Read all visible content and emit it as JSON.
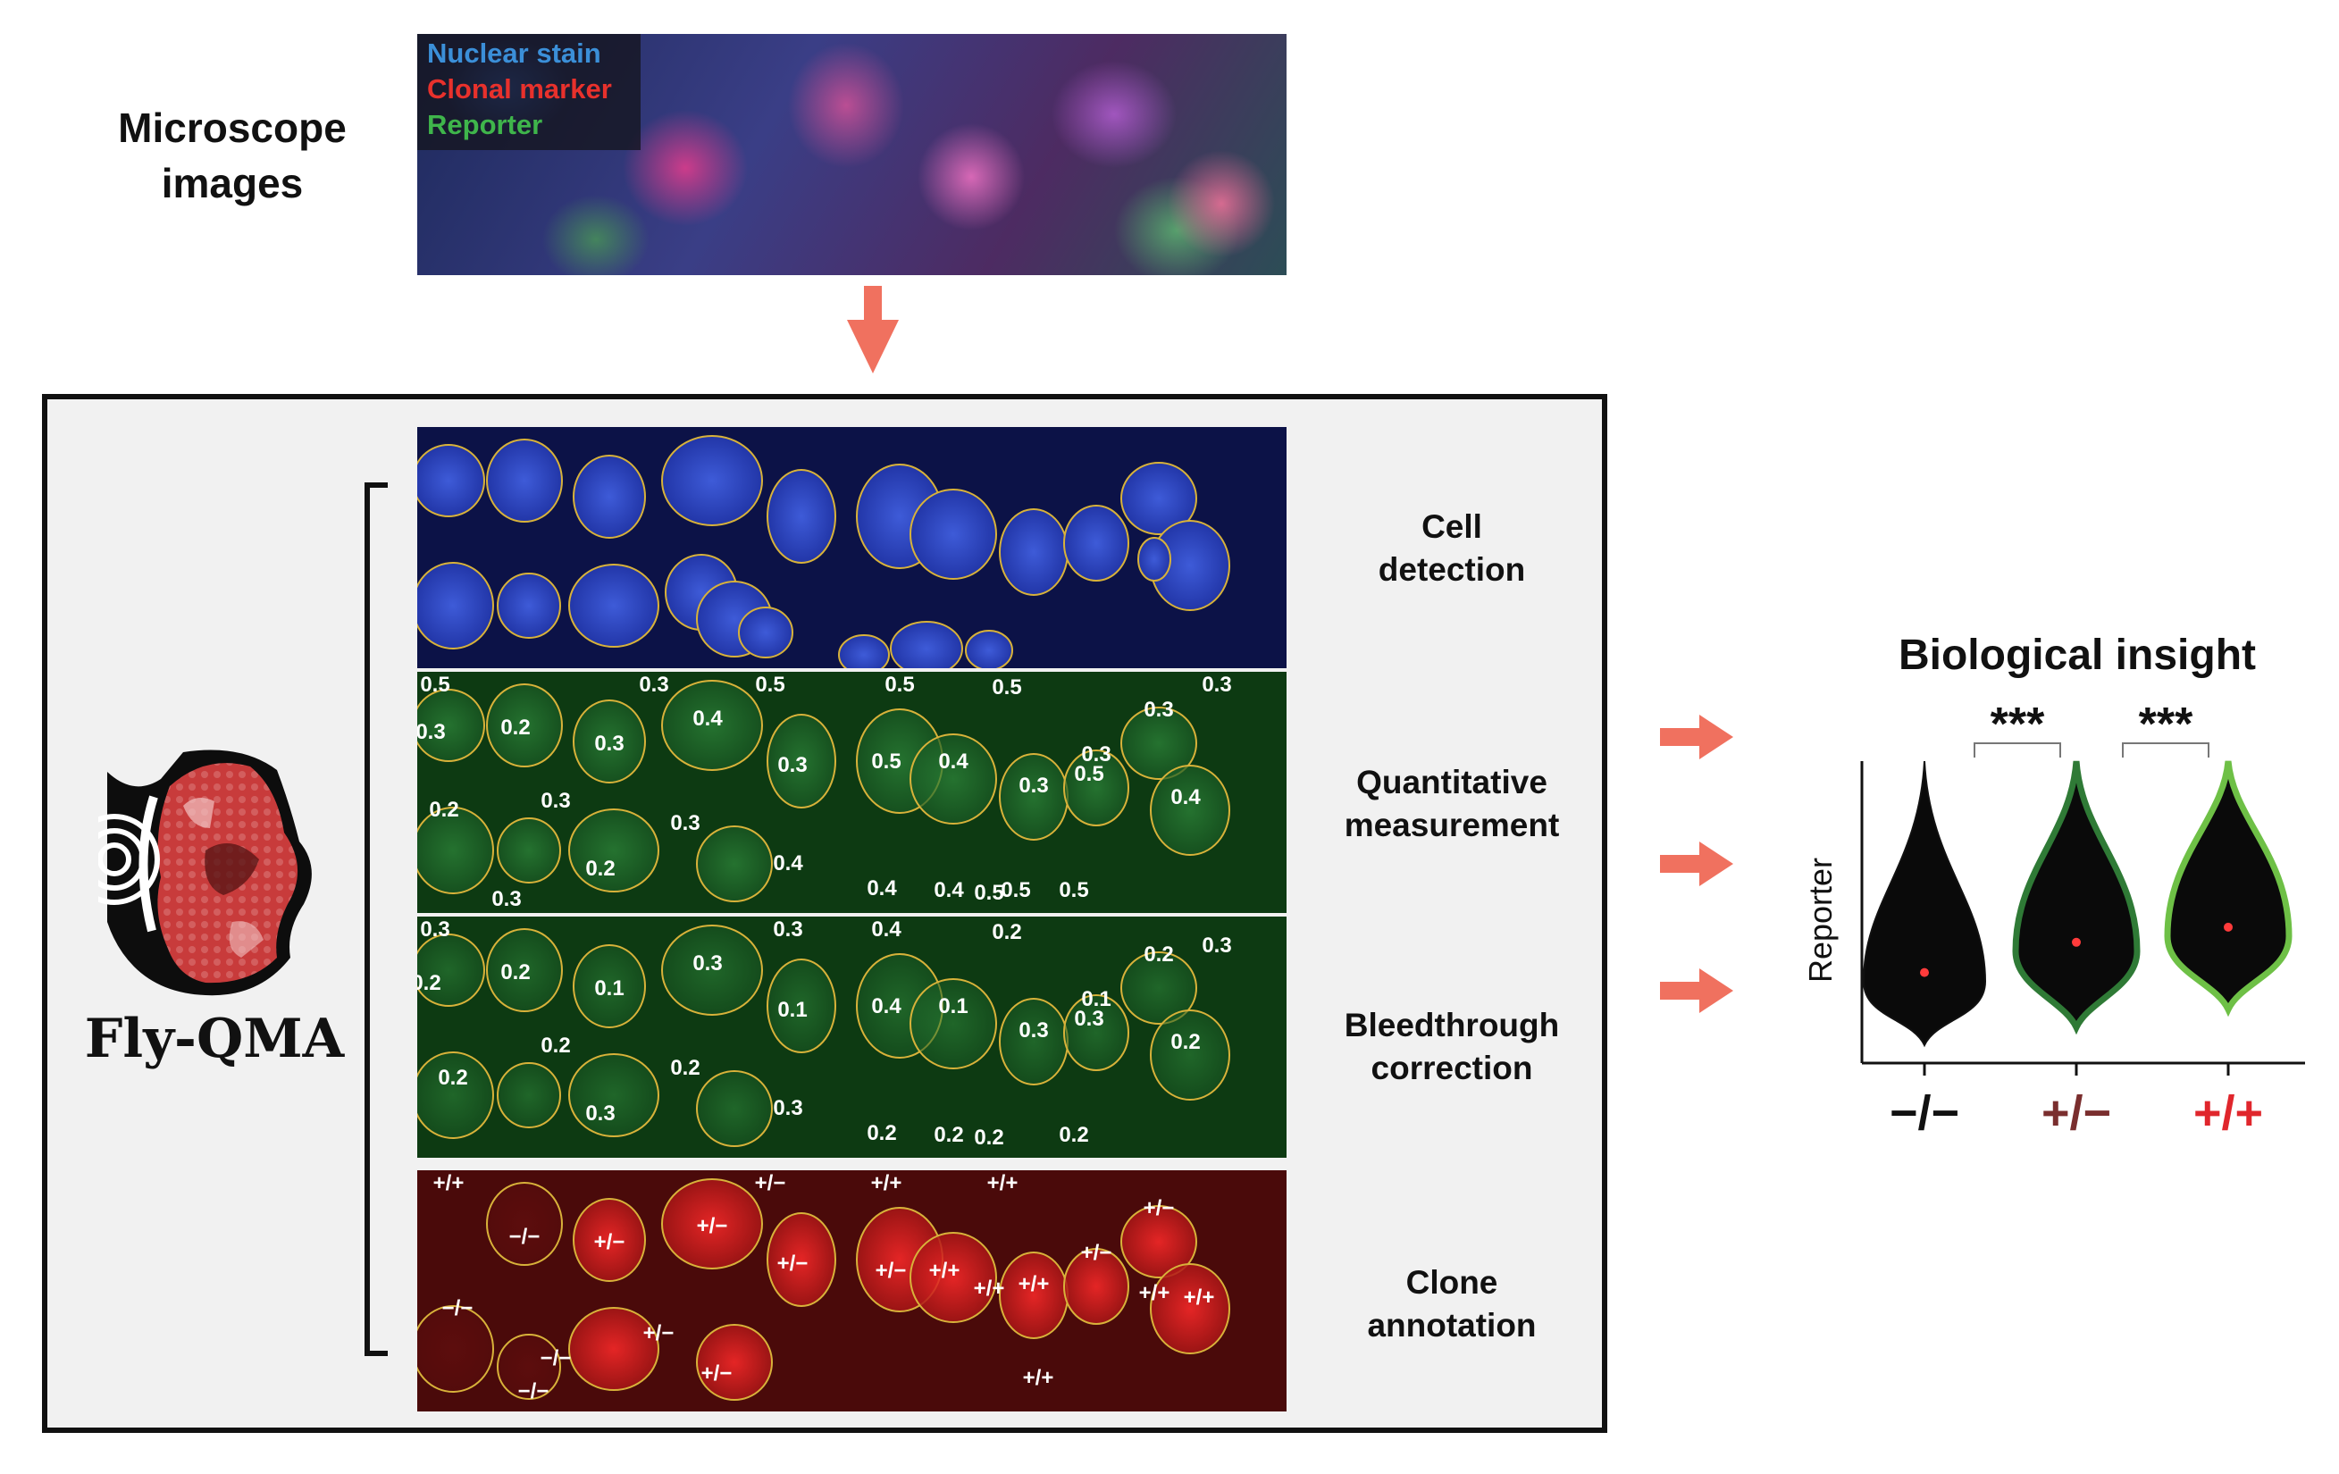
{
  "microscope": {
    "label_line1": "Microscope",
    "label_line2": "images",
    "legend": [
      {
        "text": "Nuclear stain",
        "color": "#3b8fd8"
      },
      {
        "text": "Clonal marker",
        "color": "#e8312c"
      },
      {
        "text": "Reporter",
        "color": "#3fb54b"
      }
    ]
  },
  "tool": {
    "name": "Fly-QMA"
  },
  "steps": [
    {
      "line1": "Cell",
      "line2": "detection"
    },
    {
      "line1": "Quantitative",
      "line2": "measurement"
    },
    {
      "line1": "Bleedthrough",
      "line2": "correction"
    },
    {
      "line1": "Clone",
      "line2": "annotation"
    }
  ],
  "panels": {
    "quantitative_values": [
      "0.5",
      "0.3",
      "0.2",
      "0.3",
      "0.4",
      "0.3",
      "0.5",
      "0.5",
      "0.3",
      "0.5",
      "0.4",
      "0.5",
      "0.3",
      "0.3",
      "0.3",
      "0.2",
      "0.3",
      "0.3",
      "0.2",
      "0.4",
      "0.4",
      "0.4",
      "0.5",
      "0.3",
      "0.4",
      "0.5",
      "0.5",
      "0.5",
      "0.3"
    ],
    "bleedthrough_values": [
      "0.3",
      "0.2",
      "0.2",
      "0.1",
      "0.2",
      "0.3",
      "0.4",
      "0.3",
      "0.1",
      "0.4",
      "0.1",
      "0.2",
      "0.3",
      "0.1",
      "0.2",
      "0.3",
      "0.2",
      "0.2",
      "0.3",
      "0.3",
      "0.2",
      "0.2",
      "0.2",
      "0.2",
      "0.2",
      "0.3"
    ],
    "clone_values": [
      "+/+",
      "−/−",
      "+/−",
      "+/−",
      "+/−",
      "+/+",
      "+/+",
      "−/−",
      "+/−",
      "+/+",
      "+/+",
      "+/+",
      "+/−",
      "+/−",
      "−/−",
      "+/−",
      "−/−",
      "+/−",
      "+/−",
      "+/+",
      "+/+",
      "+/+"
    ]
  },
  "insight": {
    "title": "Biological insight",
    "significance_1": "***",
    "significance_2": "***"
  },
  "chart_data": {
    "type": "violin",
    "ylabel": "Reporter",
    "categories": [
      "−/−",
      "+/−",
      "+/+"
    ],
    "category_colors": [
      "#111111",
      "#7a2e2e",
      "#e0262c"
    ],
    "violin_outline_colors": [
      "#111111",
      "#2f7a36",
      "#6ec046"
    ],
    "medians": [
      0.3,
      0.4,
      0.45
    ],
    "comparisons": [
      {
        "pair": [
          "−/−",
          "+/−"
        ],
        "label": "***"
      },
      {
        "pair": [
          "+/−",
          "+/+"
        ],
        "label": "***"
      }
    ]
  },
  "colors": {
    "arrow": "#f0715f",
    "contour": "#d8b23a",
    "nuclear_bg": "#0c1247",
    "reporter_bg": "#0d3a12",
    "clone_bg": "#4a0a0a"
  }
}
